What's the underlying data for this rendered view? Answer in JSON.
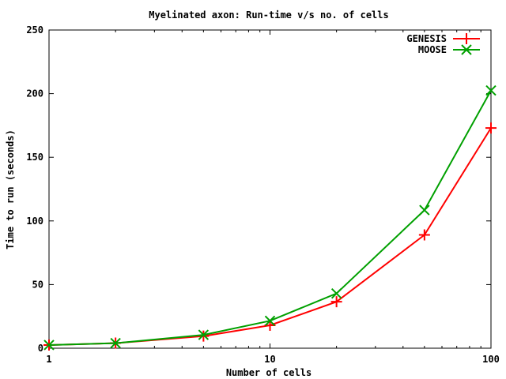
{
  "chart_data": {
    "type": "line",
    "title": "Myelinated axon: Run-time v/s no. of cells",
    "xlabel": "Number of cells",
    "ylabel": "Time to run (seconds)",
    "x_scale": "log",
    "xlim": [
      1,
      100
    ],
    "ylim": [
      0,
      250
    ],
    "x_ticks": [
      "1",
      "10",
      "100"
    ],
    "y_ticks": [
      "0",
      "50",
      "100",
      "150",
      "200",
      "250"
    ],
    "legend_position": "top-right",
    "grid": false,
    "series": [
      {
        "name": "GENESIS",
        "color": "#ff0000",
        "marker": "plus",
        "x": [
          1,
          2,
          5,
          10,
          20,
          50,
          100
        ],
        "y": [
          2.5,
          4,
          9.5,
          18,
          36.5,
          89,
          173
        ]
      },
      {
        "name": "MOOSE",
        "color": "#00a000",
        "marker": "cross",
        "x": [
          1,
          2,
          5,
          10,
          20,
          50,
          100
        ],
        "y": [
          2.5,
          4,
          10.5,
          21.5,
          43,
          108.5,
          202.5
        ]
      }
    ]
  }
}
